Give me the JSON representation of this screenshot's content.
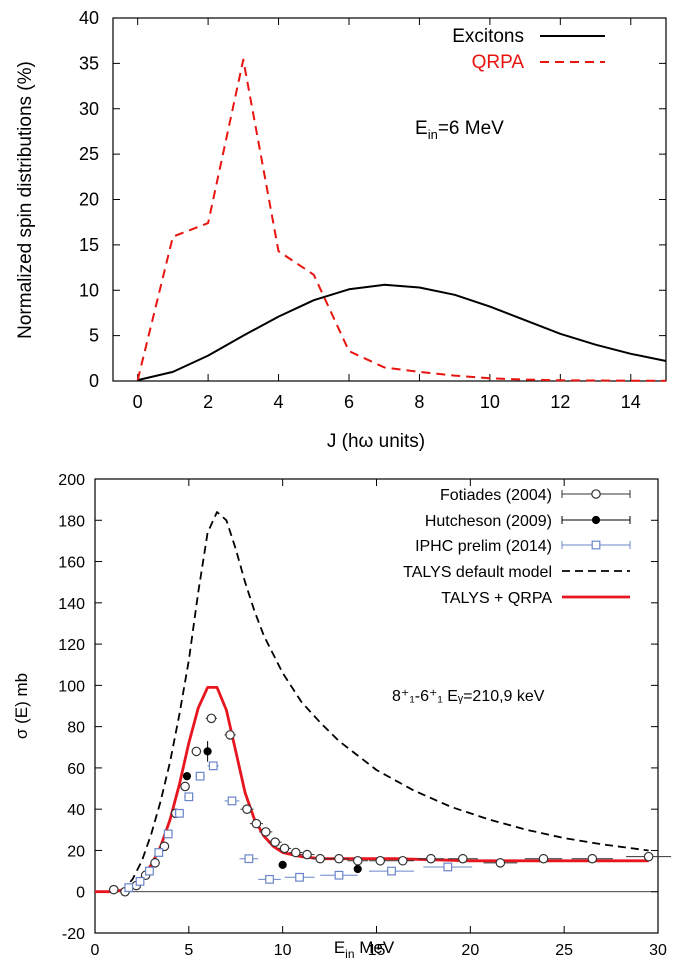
{
  "chart_data": [
    {
      "type": "line",
      "title": "",
      "xlabel": "J (hω units)",
      "ylabel": "Normalized spin distributions (%)",
      "xlim": [
        -0.7,
        15
      ],
      "ylim": [
        0,
        40
      ],
      "xticks": [
        0,
        2,
        4,
        6,
        8,
        10,
        12,
        14
      ],
      "yticks": [
        0,
        5,
        10,
        15,
        20,
        25,
        30,
        35,
        40
      ],
      "grid": false,
      "legend": "top-right",
      "annotation": {
        "main": "E",
        "sub": "in",
        "rest": "=6 MeV"
      },
      "series": [
        {
          "name": "Excitons",
          "color": "#000000",
          "style": "solid",
          "x": [
            0,
            1,
            2,
            3,
            4,
            5,
            6,
            7,
            8,
            9,
            10,
            11,
            12,
            13,
            14,
            15
          ],
          "y": [
            0.1,
            1.0,
            2.8,
            5.0,
            7.1,
            8.9,
            10.1,
            10.6,
            10.3,
            9.5,
            8.2,
            6.7,
            5.2,
            4.0,
            3.0,
            2.2
          ]
        },
        {
          "name": "QRPA",
          "color": "#e8140f",
          "style": "dashed",
          "x": [
            0,
            1,
            2,
            3,
            4,
            5,
            6,
            7,
            8,
            9,
            10,
            11,
            12,
            13,
            14,
            15
          ],
          "y": [
            0.1,
            15.9,
            17.4,
            35.4,
            14.3,
            11.7,
            3.3,
            1.5,
            1.0,
            0.6,
            0.3,
            0.15,
            0.08,
            0.05,
            0.03,
            0.02
          ]
        }
      ]
    },
    {
      "type": "scatter",
      "title": "",
      "xlabel": {
        "main": "E",
        "sub": "in",
        "rest": " MeV"
      },
      "ylabel": "σ (E) mb",
      "xlim": [
        0,
        30
      ],
      "ylim": [
        -20,
        200
      ],
      "xticks": [
        0,
        5,
        10,
        15,
        20,
        25,
        30
      ],
      "yticks": [
        -20,
        0,
        20,
        40,
        60,
        80,
        100,
        120,
        140,
        160,
        180,
        200
      ],
      "grid": false,
      "legend": "top-right",
      "annotation": "8⁺₁-6⁺₁ Eᵧ=210,9 keV",
      "series": [
        {
          "name": "Fotiades (2004)",
          "marker": "open-circle",
          "color": "#333333",
          "points": [
            {
              "x": 1.0,
              "y": 1,
              "xerr": 0.2
            },
            {
              "x": 1.6,
              "y": 0,
              "xerr": 0.2
            },
            {
              "x": 2.2,
              "y": 3,
              "xerr": 0.2
            },
            {
              "x": 2.7,
              "y": 8,
              "xerr": 0.25
            },
            {
              "x": 3.2,
              "y": 14,
              "xerr": 0.25
            },
            {
              "x": 3.7,
              "y": 22,
              "xerr": 0.25
            },
            {
              "x": 4.3,
              "y": 38,
              "xerr": 0.25
            },
            {
              "x": 4.8,
              "y": 51,
              "xerr": 0.25
            },
            {
              "x": 5.4,
              "y": 68,
              "xerr": 0.25
            },
            {
              "x": 6.2,
              "y": 84,
              "xerr": 0.3
            },
            {
              "x": 7.2,
              "y": 76,
              "xerr": 0.3
            },
            {
              "x": 8.1,
              "y": 40,
              "xerr": 0.35
            },
            {
              "x": 8.6,
              "y": 33,
              "xerr": 0.35
            },
            {
              "x": 9.1,
              "y": 29,
              "xerr": 0.35
            },
            {
              "x": 9.6,
              "y": 24,
              "xerr": 0.35
            },
            {
              "x": 10.1,
              "y": 21,
              "xerr": 0.35
            },
            {
              "x": 10.7,
              "y": 19,
              "xerr": 0.35
            },
            {
              "x": 11.3,
              "y": 18,
              "xerr": 0.4
            },
            {
              "x": 12.0,
              "y": 16,
              "xerr": 0.45
            },
            {
              "x": 13.0,
              "y": 16,
              "xerr": 0.55
            },
            {
              "x": 14.0,
              "y": 15,
              "xerr": 0.55
            },
            {
              "x": 15.2,
              "y": 15,
              "xerr": 0.6
            },
            {
              "x": 16.4,
              "y": 15,
              "xerr": 0.6
            },
            {
              "x": 17.9,
              "y": 16,
              "xerr": 0.7
            },
            {
              "x": 19.6,
              "y": 16,
              "xerr": 0.8
            },
            {
              "x": 21.6,
              "y": 14,
              "xerr": 0.9
            },
            {
              "x": 23.9,
              "y": 16,
              "xerr": 1.0
            },
            {
              "x": 26.5,
              "y": 16,
              "xerr": 1.1
            },
            {
              "x": 29.5,
              "y": 17,
              "xerr": 1.2
            }
          ]
        },
        {
          "name": "Hutcheson (2009)",
          "marker": "filled-circle",
          "color": "#000000",
          "points": [
            {
              "x": 4.9,
              "y": 56,
              "xerr": 0.1,
              "yerr": 2
            },
            {
              "x": 6.0,
              "y": 68,
              "xerr": 0.2,
              "yerr": 5
            },
            {
              "x": 10.0,
              "y": 13,
              "xerr": 0.15,
              "yerr": 1
            },
            {
              "x": 14.0,
              "y": 11,
              "xerr": 0.1,
              "yerr": 1
            }
          ]
        },
        {
          "name": "IPHC prelim (2014)",
          "marker": "open-square",
          "color": "#6a85c9",
          "points": [
            {
              "x": 1.8,
              "y": 2,
              "xerr": 0.15
            },
            {
              "x": 2.4,
              "y": 5,
              "xerr": 0.2
            },
            {
              "x": 2.9,
              "y": 10,
              "xerr": 0.2
            },
            {
              "x": 3.4,
              "y": 19,
              "xerr": 0.2
            },
            {
              "x": 3.9,
              "y": 28,
              "xerr": 0.2
            },
            {
              "x": 4.5,
              "y": 38,
              "xerr": 0.25
            },
            {
              "x": 5.0,
              "y": 46,
              "xerr": 0.25
            },
            {
              "x": 5.6,
              "y": 56,
              "xerr": 0.25
            },
            {
              "x": 6.3,
              "y": 61,
              "xerr": 0.3
            },
            {
              "x": 7.3,
              "y": 44,
              "xerr": 0.4
            },
            {
              "x": 8.2,
              "y": 16,
              "xerr": 0.5
            },
            {
              "x": 9.3,
              "y": 6,
              "xerr": 0.6
            },
            {
              "x": 10.9,
              "y": 7,
              "xerr": 0.8
            },
            {
              "x": 13.0,
              "y": 8,
              "xerr": 1.0
            },
            {
              "x": 15.8,
              "y": 10,
              "xerr": 1.2
            },
            {
              "x": 18.8,
              "y": 12,
              "xerr": 1.3
            }
          ]
        },
        {
          "name": "TALYS default model",
          "type": "line",
          "color": "#000000",
          "style": "dashed",
          "x": [
            0,
            1,
            1.5,
            2,
            2.5,
            3,
            3.5,
            4,
            4.5,
            5,
            5.5,
            6,
            6.5,
            7,
            7.5,
            8,
            8.5,
            9,
            10,
            11,
            12,
            13,
            14,
            15,
            17,
            19,
            21,
            23,
            25,
            27,
            29.5
          ],
          "y": [
            0,
            0,
            1,
            6,
            15,
            28,
            44,
            63,
            86,
            112,
            145,
            174,
            184,
            180,
            166,
            150,
            136,
            124,
            106,
            92,
            82,
            73,
            66,
            59,
            49,
            41,
            35,
            30,
            26,
            23,
            20
          ]
        },
        {
          "name": "TALYS + QRPA",
          "type": "line",
          "color": "#e8141e",
          "style": "solid",
          "x": [
            0,
            1,
            1.5,
            2,
            2.5,
            3,
            3.5,
            4,
            4.5,
            5,
            5.5,
            6,
            6.5,
            7,
            7.5,
            8,
            8.5,
            9,
            9.5,
            10,
            10.5,
            11,
            12,
            14,
            16,
            20,
            24,
            27,
            29.5
          ],
          "y": [
            0,
            0,
            1,
            3,
            7,
            13,
            22,
            35,
            52,
            72,
            89,
            99,
            99,
            88,
            68,
            48,
            35,
            27,
            22,
            19,
            18,
            17,
            16,
            16,
            16,
            15,
            15,
            15,
            15
          ]
        }
      ]
    }
  ]
}
